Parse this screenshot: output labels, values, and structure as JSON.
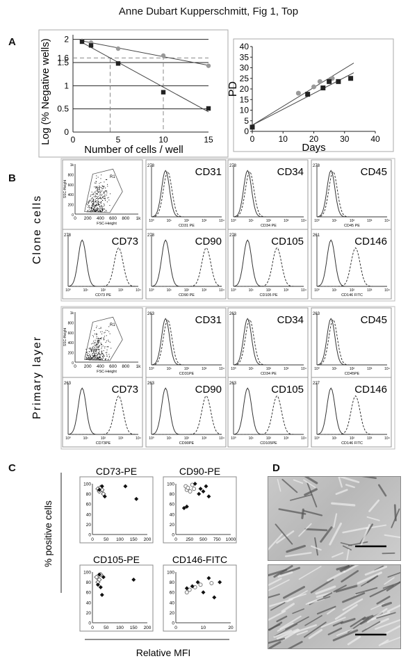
{
  "figure": {
    "title": "Anne Dubart Kupperschmitt, Fig 1, Top",
    "panels": {
      "A": "A",
      "B": "B",
      "C": "C",
      "D": "D"
    }
  },
  "chart_data": [
    {
      "id": "A-left",
      "type": "scatter",
      "xlabel": "Number of cells / well",
      "ylabel": "Log (% Negative wells)",
      "xlim": [
        0,
        15
      ],
      "ylim": [
        0,
        2.1
      ],
      "xticks": [
        0,
        5,
        10,
        15
      ],
      "yticks": [
        0,
        0.5,
        1,
        1.5,
        2
      ],
      "ytick_labels": [
        "0",
        "0.5",
        "1",
        "1.5",
        "2"
      ],
      "annotation": "1.6",
      "reference_y": 1.6,
      "series": [
        {
          "marker": "circle",
          "color": "#999999",
          "x": [
            1,
            2,
            5,
            10,
            15
          ],
          "y": [
            1.97,
            1.93,
            1.8,
            1.65,
            1.43
          ]
        },
        {
          "marker": "square",
          "color": "#222222",
          "x": [
            1,
            2,
            5,
            10,
            15
          ],
          "y": [
            1.95,
            1.87,
            1.48,
            0.86,
            0.51
          ]
        }
      ]
    },
    {
      "id": "A-right",
      "type": "scatter",
      "xlabel": "Days",
      "ylabel": "PD",
      "xlim": [
        0,
        40
      ],
      "ylim": [
        0,
        40
      ],
      "xticks": [
        0,
        10,
        20,
        30,
        40
      ],
      "yticks": [
        0,
        5,
        10,
        15,
        20,
        25,
        30,
        35,
        40
      ],
      "series": [
        {
          "marker": "circle",
          "color": "#999999",
          "x": [
            0,
            15,
            20,
            22,
            25,
            26
          ],
          "y": [
            2,
            18,
            21,
            23.5,
            24,
            25
          ]
        },
        {
          "marker": "square",
          "color": "#222222",
          "x": [
            0,
            18,
            23,
            25,
            28,
            32
          ],
          "y": [
            2,
            17.5,
            20.5,
            23.5,
            23.5,
            25
          ]
        }
      ]
    },
    {
      "id": "C-CD73",
      "type": "scatter",
      "title": "CD73-PE",
      "xlim": [
        0,
        200
      ],
      "ylim": [
        0,
        100
      ],
      "xticks": [
        0,
        50,
        100,
        150,
        200
      ],
      "yticks": [
        0,
        20,
        40,
        60,
        80,
        100
      ],
      "series": [
        {
          "marker": "diamond-open",
          "x": [
            20,
            25,
            30,
            35,
            40
          ],
          "y": [
            90,
            85,
            93,
            88,
            80
          ]
        },
        {
          "marker": "diamond-filled",
          "x": [
            25,
            35,
            45,
            120,
            160
          ],
          "y": [
            88,
            95,
            75,
            95,
            70
          ]
        }
      ]
    },
    {
      "id": "C-CD90",
      "type": "scatter",
      "title": "CD90-PE",
      "xlim": [
        0,
        1000
      ],
      "ylim": [
        0,
        100
      ],
      "xticks": [
        0,
        250,
        500,
        750,
        1000
      ],
      "yticks": [
        0,
        20,
        40,
        60,
        80,
        100
      ],
      "series": [
        {
          "marker": "circle-open",
          "x": [
            180,
            200,
            220,
            260,
            300,
            330
          ],
          "y": [
            95,
            88,
            92,
            85,
            98,
            90
          ]
        },
        {
          "marker": "diamond-filled",
          "x": [
            150,
            200,
            350,
            420,
            450,
            500,
            550,
            600
          ],
          "y": [
            52,
            55,
            100,
            80,
            90,
            85,
            95,
            75
          ]
        }
      ]
    },
    {
      "id": "C-CD105",
      "type": "scatter",
      "title": "CD105-PE",
      "xlim": [
        0,
        200
      ],
      "ylim": [
        0,
        100
      ],
      "xticks": [
        0,
        50,
        100,
        150,
        200
      ],
      "yticks": [
        0,
        20,
        40,
        60,
        80,
        100
      ],
      "series": [
        {
          "marker": "diamond-open",
          "x": [
            15,
            20,
            25,
            30
          ],
          "y": [
            90,
            80,
            85,
            95
          ]
        },
        {
          "marker": "diamond-filled",
          "x": [
            20,
            25,
            30,
            35,
            40,
            150
          ],
          "y": [
            75,
            95,
            70,
            55,
            90,
            85
          ]
        }
      ]
    },
    {
      "id": "C-CD146",
      "type": "scatter",
      "title": "CD146-FITC",
      "xlim": [
        0,
        20
      ],
      "ylim": [
        0,
        100
      ],
      "xticks": [
        0,
        10,
        20
      ],
      "yticks": [
        0,
        20,
        40,
        60,
        80,
        100
      ],
      "series": [
        {
          "marker": "circle-open",
          "x": [
            4,
            5,
            7,
            9,
            13
          ],
          "y": [
            60,
            65,
            70,
            75,
            78
          ]
        },
        {
          "marker": "diamond-filled",
          "x": [
            4,
            6,
            8,
            10,
            12,
            14,
            16
          ],
          "y": [
            68,
            72,
            80,
            60,
            88,
            50,
            80
          ]
        }
      ]
    }
  ],
  "panel_B": {
    "row_labels": [
      "Clone cells",
      "Primary layer"
    ],
    "fsc_axis": {
      "xlabel": "FSC-Height",
      "ylabel": "SSC-Height",
      "xticks": [
        "0",
        "200",
        "400",
        "600",
        "800",
        "1k"
      ],
      "yticks": [
        "1k",
        "800",
        "600",
        "400",
        "200",
        "0"
      ],
      "gate_label": "R1"
    },
    "log_ticks": [
      "10⁰",
      "10¹",
      "10²",
      "10³",
      "10⁴"
    ],
    "clone": {
      "row1": [
        {
          "marker": "CD31",
          "axis_label": "CD31 PE",
          "max": "278"
        },
        {
          "marker": "CD34",
          "axis_label": "CD34 PE",
          "max": "278"
        },
        {
          "marker": "CD45",
          "axis_label": "CD45 PE",
          "max": "278"
        }
      ],
      "row2": [
        {
          "marker": "CD73",
          "axis_label": "CD73 PE",
          "max": "278"
        },
        {
          "marker": "CD90",
          "axis_label": "CD90 PE",
          "max": "278"
        },
        {
          "marker": "CD105",
          "axis_label": "CD105 PE",
          "max": "278"
        },
        {
          "marker": "CD146",
          "axis_label": "CD146 FITC",
          "max": "261"
        }
      ]
    },
    "primary": {
      "row1": [
        {
          "marker": "CD31",
          "axis_label": "CD31PE",
          "max": "263"
        },
        {
          "marker": "CD34",
          "axis_label": "CD34 PE",
          "max": "263"
        },
        {
          "marker": "CD45",
          "axis_label": "CD45PE",
          "max": "263"
        }
      ],
      "row2": [
        {
          "marker": "CD73",
          "axis_label": "CD73PE",
          "max": "263"
        },
        {
          "marker": "CD90",
          "axis_label": "CD90PE",
          "max": "263"
        },
        {
          "marker": "CD105",
          "axis_label": "CD105PE",
          "max": "263"
        },
        {
          "marker": "CD146",
          "axis_label": "CD146 FITC",
          "max": "227"
        }
      ]
    }
  },
  "panel_C": {
    "ylabel": "% positive cells",
    "xlabel": "Relative MFI"
  }
}
